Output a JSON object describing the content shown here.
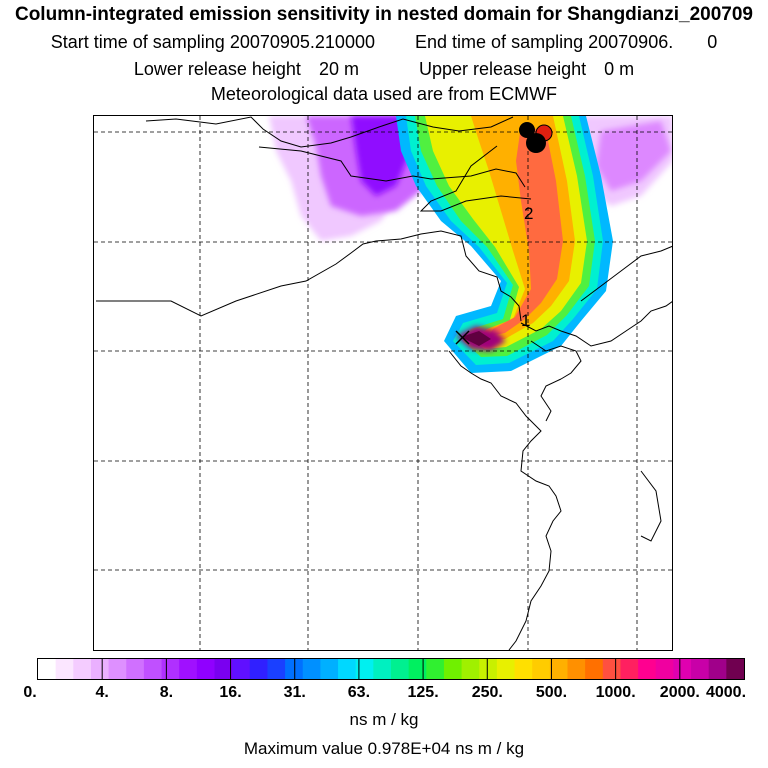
{
  "header": {
    "title": "Column-integrated emission sensitivity in nested domain for Shangdianzi_200709",
    "start_label": "Start time of sampling",
    "start_value": "20070905.210000",
    "end_label": "End time of sampling",
    "end_value": "20070906.",
    "end_suffix": "0",
    "lower_label": "Lower release height",
    "lower_value": "20 m",
    "upper_label": "Upper release height",
    "upper_value": "0 m",
    "met_text": "Meteorological data used are from ECMWF"
  },
  "map": {
    "trajectory_labels": [
      "1",
      "2"
    ],
    "markers": [
      {
        "name": "black-dot-1",
        "color": "#000000"
      },
      {
        "name": "black-dot-2",
        "color": "#000000"
      },
      {
        "name": "red-dot",
        "color": "#e02010"
      }
    ]
  },
  "colorbar": {
    "tick_labels": [
      "0.",
      "4.",
      "8.",
      "16.",
      "31.",
      "63.",
      "125.",
      "250.",
      "500.",
      "1000.",
      "2000.",
      "4000."
    ],
    "colors": [
      "#ffffff",
      "#fbe6ff",
      "#f4ccff",
      "#eab0ff",
      "#de90ff",
      "#d070ff",
      "#c050ff",
      "#b030ff",
      "#a010ff",
      "#9000ff",
      "#7a00f0",
      "#6010ff",
      "#3020ff",
      "#1a40ff",
      "#0070ff",
      "#0090ff",
      "#00b0ff",
      "#00d8ff",
      "#00f0f0",
      "#00f0c0",
      "#00f090",
      "#00f060",
      "#30f030",
      "#70f000",
      "#a0f000",
      "#c8f000",
      "#e8f000",
      "#ffe000",
      "#ffcc00",
      "#ffb000",
      "#ff9000",
      "#ff7000",
      "#ff5040",
      "#ff2060",
      "#ff0090",
      "#f000a0",
      "#e000b0",
      "#c800a8",
      "#a0008a",
      "#700050"
    ],
    "units": "ns m / kg"
  },
  "footer": {
    "max_label": "Maximum value",
    "max_value": "0.978E+04",
    "max_units": "ns m / kg"
  }
}
